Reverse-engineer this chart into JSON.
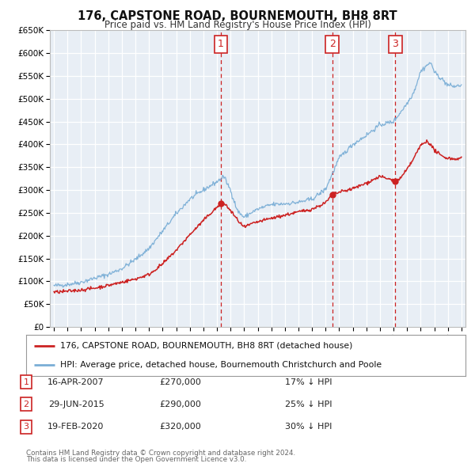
{
  "title": "176, CAPSTONE ROAD, BOURNEMOUTH, BH8 8RT",
  "subtitle": "Price paid vs. HM Land Registry's House Price Index (HPI)",
  "background_color": "#ffffff",
  "plot_bg_color": "#e8eef5",
  "grid_color": "#ffffff",
  "hpi_color": "#7aaed6",
  "sale_color": "#cc2222",
  "ylim": [
    0,
    650000
  ],
  "yticks": [
    0,
    50000,
    100000,
    150000,
    200000,
    250000,
    300000,
    350000,
    400000,
    450000,
    500000,
    550000,
    600000,
    650000
  ],
  "ytick_labels": [
    "£0",
    "£50K",
    "£100K",
    "£150K",
    "£200K",
    "£250K",
    "£300K",
    "£350K",
    "£400K",
    "£450K",
    "£500K",
    "£550K",
    "£600K",
    "£650K"
  ],
  "xlim_start": 1994.7,
  "xlim_end": 2025.3,
  "sale_transactions": [
    {
      "year": 2007.29,
      "price": 270000,
      "label": "1"
    },
    {
      "year": 2015.49,
      "price": 290000,
      "label": "2"
    },
    {
      "year": 2020.13,
      "price": 320000,
      "label": "3"
    }
  ],
  "legend_sale_label": "176, CAPSTONE ROAD, BOURNEMOUTH, BH8 8RT (detached house)",
  "legend_hpi_label": "HPI: Average price, detached house, Bournemouth Christchurch and Poole",
  "table_rows": [
    {
      "num": "1",
      "date": "16-APR-2007",
      "price": "£270,000",
      "pct": "17% ↓ HPI"
    },
    {
      "num": "2",
      "date": "29-JUN-2015",
      "price": "£290,000",
      "pct": "25% ↓ HPI"
    },
    {
      "num": "3",
      "date": "19-FEB-2020",
      "price": "£320,000",
      "pct": "30% ↓ HPI"
    }
  ],
  "footer": [
    "Contains HM Land Registry data © Crown copyright and database right 2024.",
    "This data is licensed under the Open Government Licence v3.0."
  ]
}
